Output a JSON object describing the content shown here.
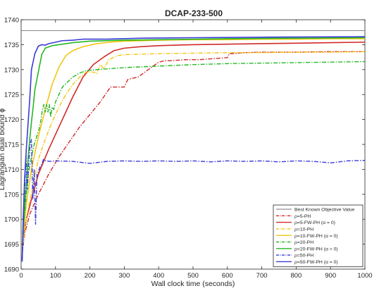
{
  "chart_data": {
    "type": "line",
    "title": "DCAP-233-500",
    "xlabel": "Wall clock time (seconds)",
    "ylabel": "Lagrangian dual bound ϕ",
    "xlim": [
      0,
      1000
    ],
    "ylim": [
      1690,
      1740
    ],
    "x_ticks": [
      0,
      100,
      200,
      300,
      400,
      500,
      600,
      700,
      800,
      900,
      1000
    ],
    "y_ticks": [
      1690,
      1695,
      1700,
      1705,
      1710,
      1715,
      1720,
      1725,
      1730,
      1735,
      1740
    ],
    "grid": false,
    "legend_position": "bottom-right",
    "series": [
      {
        "name": "Best Known Objective Value",
        "color": "#777777",
        "dash": "solid",
        "x": [
          0,
          1000
        ],
        "y": [
          1737.8,
          1737.8
        ]
      },
      {
        "name": "ρ=5-PH",
        "color": "#d22a2a",
        "dash": "dashdot",
        "x": [
          3,
          10,
          25,
          50,
          80,
          110,
          140,
          170,
          200,
          230,
          260,
          280,
          300,
          310,
          320,
          340,
          360,
          380,
          400,
          420,
          440,
          460,
          480,
          500,
          520,
          540,
          560,
          580,
          600,
          605,
          615,
          630,
          650,
          700,
          800,
          900,
          1000
        ],
        "y": [
          1693,
          1697,
          1701,
          1705,
          1709,
          1712.5,
          1715.5,
          1718.5,
          1721,
          1723.5,
          1726.5,
          1726.5,
          1726.5,
          1728,
          1728.2,
          1728.5,
          1729.5,
          1730.5,
          1731.5,
          1731.8,
          1731.8,
          1731.9,
          1732,
          1732,
          1732,
          1732.1,
          1732.2,
          1732.3,
          1732.4,
          1733.2,
          1733.2,
          1733.3,
          1733.4,
          1733.5,
          1733.5,
          1733.6,
          1733.6
        ]
      },
      {
        "name": "ρ=5-FW-PH (α = 0)",
        "color": "#d22a2a",
        "dash": "solid",
        "x": [
          5,
          15,
          30,
          50,
          80,
          120,
          150,
          180,
          210,
          240,
          270,
          300,
          350,
          400,
          500,
          600,
          700,
          800,
          900,
          1000
        ],
        "y": [
          1696,
          1700,
          1704,
          1709,
          1714,
          1720,
          1724.5,
          1728.5,
          1731,
          1732.5,
          1733.8,
          1734.3,
          1734.6,
          1734.8,
          1735,
          1735.1,
          1735.2,
          1735.3,
          1735.4,
          1735.5
        ]
      },
      {
        "name": "ρ=10-PH",
        "color": "#f2c513",
        "dash": "dashdot",
        "x": [
          3,
          10,
          20,
          35,
          50,
          70,
          90,
          110,
          130,
          150,
          170,
          190,
          210,
          220,
          230,
          240,
          255,
          280,
          300,
          350,
          400,
          500,
          600,
          700,
          800,
          900,
          1000
        ],
        "y": [
          1693,
          1698,
          1702,
          1707,
          1712,
          1716,
          1719.5,
          1722.5,
          1725,
          1727,
          1728.5,
          1729.5,
          1729.5,
          1729.2,
          1731,
          1730.2,
          1732,
          1732.8,
          1733,
          1733.1,
          1733.2,
          1733.3,
          1733.4,
          1733.4,
          1733.5,
          1733.5,
          1733.6
        ]
      },
      {
        "name": "ρ=10-FW-PH (α = 0)",
        "color": "#f2c513",
        "dash": "solid",
        "x": [
          5,
          15,
          30,
          50,
          70,
          90,
          110,
          130,
          150,
          180,
          220,
          260,
          300,
          400,
          500,
          600,
          700,
          800,
          900,
          1000
        ],
        "y": [
          1697,
          1703,
          1710,
          1716.5,
          1722,
          1727,
          1730.5,
          1732.8,
          1733.8,
          1734.6,
          1735.2,
          1735.5,
          1735.7,
          1735.9,
          1736,
          1736,
          1736.1,
          1736.1,
          1736.2,
          1736.2
        ]
      },
      {
        "name": "ρ=20-PH",
        "color": "#24b824",
        "dash": "dashdot",
        "x": [
          3,
          8,
          15,
          22,
          30,
          38,
          45,
          52,
          58,
          62,
          66,
          70,
          74,
          78,
          82,
          86,
          90,
          95,
          100,
          110,
          120,
          135,
          150,
          170,
          190,
          220,
          260,
          300,
          400,
          500,
          600,
          700,
          800,
          900,
          1000
        ],
        "y": [
          1692,
          1699,
          1705,
          1709.5,
          1712.5,
          1715,
          1716.5,
          1718,
          1720,
          1722,
          1723,
          1721.5,
          1723,
          1721.5,
          1723,
          1720.5,
          1722.5,
          1722,
          1723.5,
          1725,
          1726.5,
          1727.5,
          1728.5,
          1729.3,
          1729.8,
          1730,
          1730.2,
          1730.4,
          1730.7,
          1731,
          1731.2,
          1731.3,
          1731.4,
          1731.5,
          1731.6
        ]
      },
      {
        "name": "ρ=20-FW-PH (α = 0)",
        "color": "#24b824",
        "dash": "solid",
        "x": [
          5,
          10,
          15,
          20,
          25,
          30,
          35,
          40,
          50,
          60,
          70,
          90,
          120,
          150,
          200,
          300,
          400,
          600,
          800,
          1000
        ],
        "y": [
          1697,
          1702,
          1707,
          1712,
          1716,
          1719.5,
          1722.5,
          1726,
          1729.5,
          1733,
          1734.3,
          1734.8,
          1735.1,
          1735.4,
          1735.7,
          1735.9,
          1736,
          1736.2,
          1736.3,
          1736.4
        ]
      },
      {
        "name": "ρ=50-PH",
        "color": "#3b3bd6",
        "dash": "dashdot",
        "x": [
          3,
          6,
          10,
          14,
          18,
          22,
          26,
          30,
          34,
          38,
          42,
          46,
          50,
          55,
          60,
          65,
          70,
          80,
          100,
          150,
          200,
          250,
          300,
          350,
          400,
          450,
          500,
          550,
          600,
          650,
          700,
          750,
          800,
          850,
          900,
          950,
          1000
        ],
        "y": [
          1692,
          1700,
          1705,
          1713,
          1706,
          1711,
          1715,
          1716,
          1704,
          1710,
          1699,
          1709,
          1709.5,
          1710.5,
          1711,
          1712,
          1711.8,
          1711.6,
          1711.7,
          1711.6,
          1711.2,
          1711.6,
          1711.7,
          1711.6,
          1711.7,
          1711.6,
          1711.7,
          1711.5,
          1711.7,
          1711.6,
          1711.7,
          1711.5,
          1711.7,
          1711.6,
          1711.3,
          1711.7,
          1711.8
        ]
      },
      {
        "name": "ρ=50-FW-PH (α = 0)",
        "color": "#3b3bd6",
        "dash": "solid",
        "x": [
          3,
          6,
          10,
          15,
          20,
          25,
          30,
          40,
          50,
          60,
          70,
          80,
          100,
          120,
          150,
          180,
          250,
          350,
          500,
          700,
          1000
        ],
        "y": [
          1691.5,
          1700,
          1708,
          1714,
          1719,
          1724,
          1730,
          1733.2,
          1734.7,
          1735,
          1734.9,
          1735.2,
          1735.5,
          1735.8,
          1735.9,
          1736.1,
          1736.1,
          1736.3,
          1736.4,
          1736.5,
          1736.6
        ]
      }
    ]
  }
}
